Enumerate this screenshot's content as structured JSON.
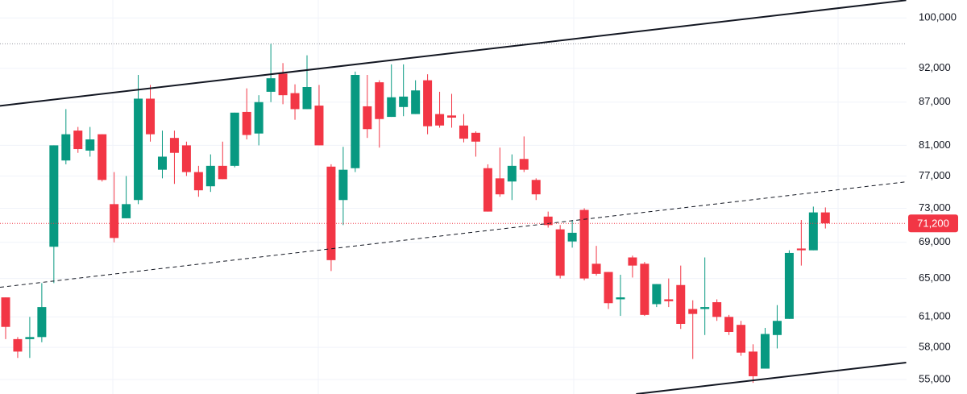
{
  "chart_data": {
    "type": "candlestick",
    "log_scale": true,
    "grid": true,
    "ylim": [
      53700,
      103000
    ],
    "yticks": [
      {
        "value": 55000,
        "label": "55,000"
      },
      {
        "value": 58000,
        "label": "58,000"
      },
      {
        "value": 61000,
        "label": "61,000"
      },
      {
        "value": 65000,
        "label": "65,000"
      },
      {
        "value": 69000,
        "label": "69,000"
      },
      {
        "value": 73000,
        "label": "73,000"
      },
      {
        "value": 77000,
        "label": "77,000"
      },
      {
        "value": 81000,
        "label": "81,000"
      },
      {
        "value": 87000,
        "label": "87,000"
      },
      {
        "value": 92000,
        "label": "92,000"
      },
      {
        "value": 100000,
        "label": "100,000"
      }
    ],
    "up_color": "#089981",
    "down_color": "#f23645",
    "open": [
      63000,
      58800,
      58800,
      59000,
      68500,
      79000,
      83000,
      80300,
      82500,
      73500,
      71800,
      74000,
      87500,
      77800,
      82000,
      81000,
      77500,
      75700,
      78300,
      78300,
      85600,
      82600,
      88500,
      91200,
      88300,
      86000,
      86500,
      78200,
      74000,
      78000,
      86400,
      89900,
      84900,
      86300,
      85300,
      90200,
      85300,
      85100,
      83700,
      82700,
      78000,
      76700,
      76300,
      79200,
      76500,
      72000,
      70500,
      69100,
      72800,
      66600,
      65700,
      62800,
      67300,
      66600,
      62300,
      62800,
      64300,
      61800,
      61800,
      62500,
      61000,
      60200,
      57600,
      56000,
      59200,
      60800,
      68300,
      68100,
      72500
    ],
    "high": [
      63000,
      59000,
      61000,
      64500,
      81000,
      86000,
      83500,
      83500,
      82500,
      77500,
      77000,
      91000,
      89500,
      83000,
      83000,
      81500,
      78300,
      79800,
      81500,
      85500,
      89000,
      88000,
      95800,
      92800,
      89600,
      94000,
      89500,
      78500,
      80800,
      91500,
      91000,
      90200,
      92600,
      92600,
      90200,
      91100,
      88500,
      88200,
      85300,
      82900,
      78500,
      80700,
      79800,
      82200,
      76700,
      72600,
      71000,
      71600,
      73000,
      68600,
      65700,
      65400,
      67500,
      66800,
      64400,
      65000,
      66400,
      62700,
      67300,
      62800,
      61200,
      60600,
      58300,
      59900,
      62200,
      68100,
      71600,
      73200,
      73100
    ],
    "low": [
      58800,
      57000,
      57000,
      58500,
      64500,
      78500,
      80000,
      79500,
      76300,
      69000,
      71800,
      73500,
      81500,
      76700,
      76000,
      77000,
      74400,
      75000,
      76600,
      78100,
      81800,
      81000,
      87000,
      86700,
      84500,
      86000,
      81000,
      65800,
      71000,
      77500,
      82000,
      80700,
      84900,
      85000,
      85300,
      82500,
      83400,
      83400,
      81400,
      79500,
      72600,
      74400,
      74000,
      77500,
      74000,
      70700,
      65000,
      68400,
      64800,
      65300,
      61800,
      61100,
      65100,
      61100,
      62000,
      62000,
      59800,
      56900,
      59200,
      60600,
      59200,
      57200,
      54700,
      56000,
      57900,
      60800,
      66400,
      68100,
      70600
    ],
    "close": [
      60000,
      57600,
      59000,
      62000,
      81000,
      82500,
      80500,
      81800,
      76500,
      69500,
      73500,
      87500,
      82500,
      79500,
      80000,
      77500,
      75200,
      78300,
      76600,
      85500,
      82400,
      87000,
      90500,
      88000,
      86000,
      89200,
      81000,
      67000,
      77800,
      91000,
      83200,
      84600,
      87700,
      87800,
      88700,
      83600,
      83700,
      84800,
      81900,
      81500,
      72600,
      74700,
      78300,
      77800,
      74700,
      71000,
      65300,
      70100,
      65000,
      65500,
      62400,
      63000,
      66400,
      61200,
      64400,
      62600,
      60300,
      61300,
      62000,
      61000,
      59500,
      57500,
      55300,
      59300,
      60600,
      67800,
      68100,
      72500,
      71200
    ],
    "last_price": {
      "value": 71200,
      "label": "71,200"
    },
    "hline": 95800,
    "trendlines": [
      {
        "style": "solid",
        "points": [
          [
            -0.47,
            86470
          ],
          [
            74.7,
            102960
          ]
        ]
      },
      {
        "style": "dashed",
        "points": [
          [
            -0.47,
            64060
          ],
          [
            74.7,
            76260
          ]
        ]
      },
      {
        "style": "solid",
        "points": [
          [
            52.3,
            53700
          ],
          [
            74.7,
            56560
          ]
        ]
      }
    ]
  }
}
